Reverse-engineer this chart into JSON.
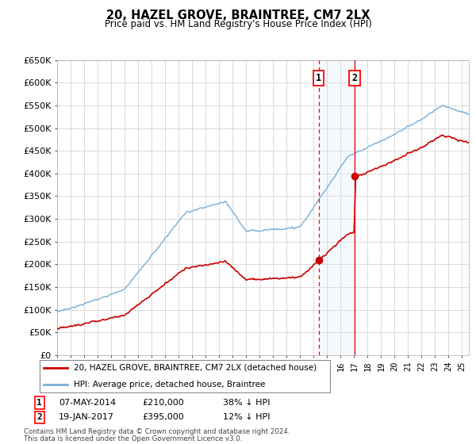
{
  "title": "20, HAZEL GROVE, BRAINTREE, CM7 2LX",
  "subtitle": "Price paid vs. HM Land Registry's House Price Index (HPI)",
  "ylim": [
    0,
    650000
  ],
  "yticks": [
    0,
    50000,
    100000,
    150000,
    200000,
    250000,
    300000,
    350000,
    400000,
    450000,
    500000,
    550000,
    600000,
    650000
  ],
  "ytick_labels": [
    "£0",
    "£50K",
    "£100K",
    "£150K",
    "£200K",
    "£250K",
    "£300K",
    "£350K",
    "£400K",
    "£450K",
    "£500K",
    "£550K",
    "£600K",
    "£650K"
  ],
  "xlim_start": 1995.0,
  "xlim_end": 2025.5,
  "transaction1_date": 2014.37,
  "transaction1_price": 210000,
  "transaction1_label": "07-MAY-2014",
  "transaction1_pct": "38% ↓ HPI",
  "transaction2_date": 2017.05,
  "transaction2_price": 395000,
  "transaction2_label": "19-JAN-2017",
  "transaction2_pct": "12% ↓ HPI",
  "legend_line1": "20, HAZEL GROVE, BRAINTREE, CM7 2LX (detached house)",
  "legend_line2": "HPI: Average price, detached house, Braintree",
  "footer1": "Contains HM Land Registry data © Crown copyright and database right 2024.",
  "footer2": "This data is licensed under the Open Government Licence v3.0.",
  "property_color": "#cc0000",
  "hpi_color": "#7aafd4",
  "grid_color": "#cccccc",
  "shade_color": "#d8eaf8"
}
